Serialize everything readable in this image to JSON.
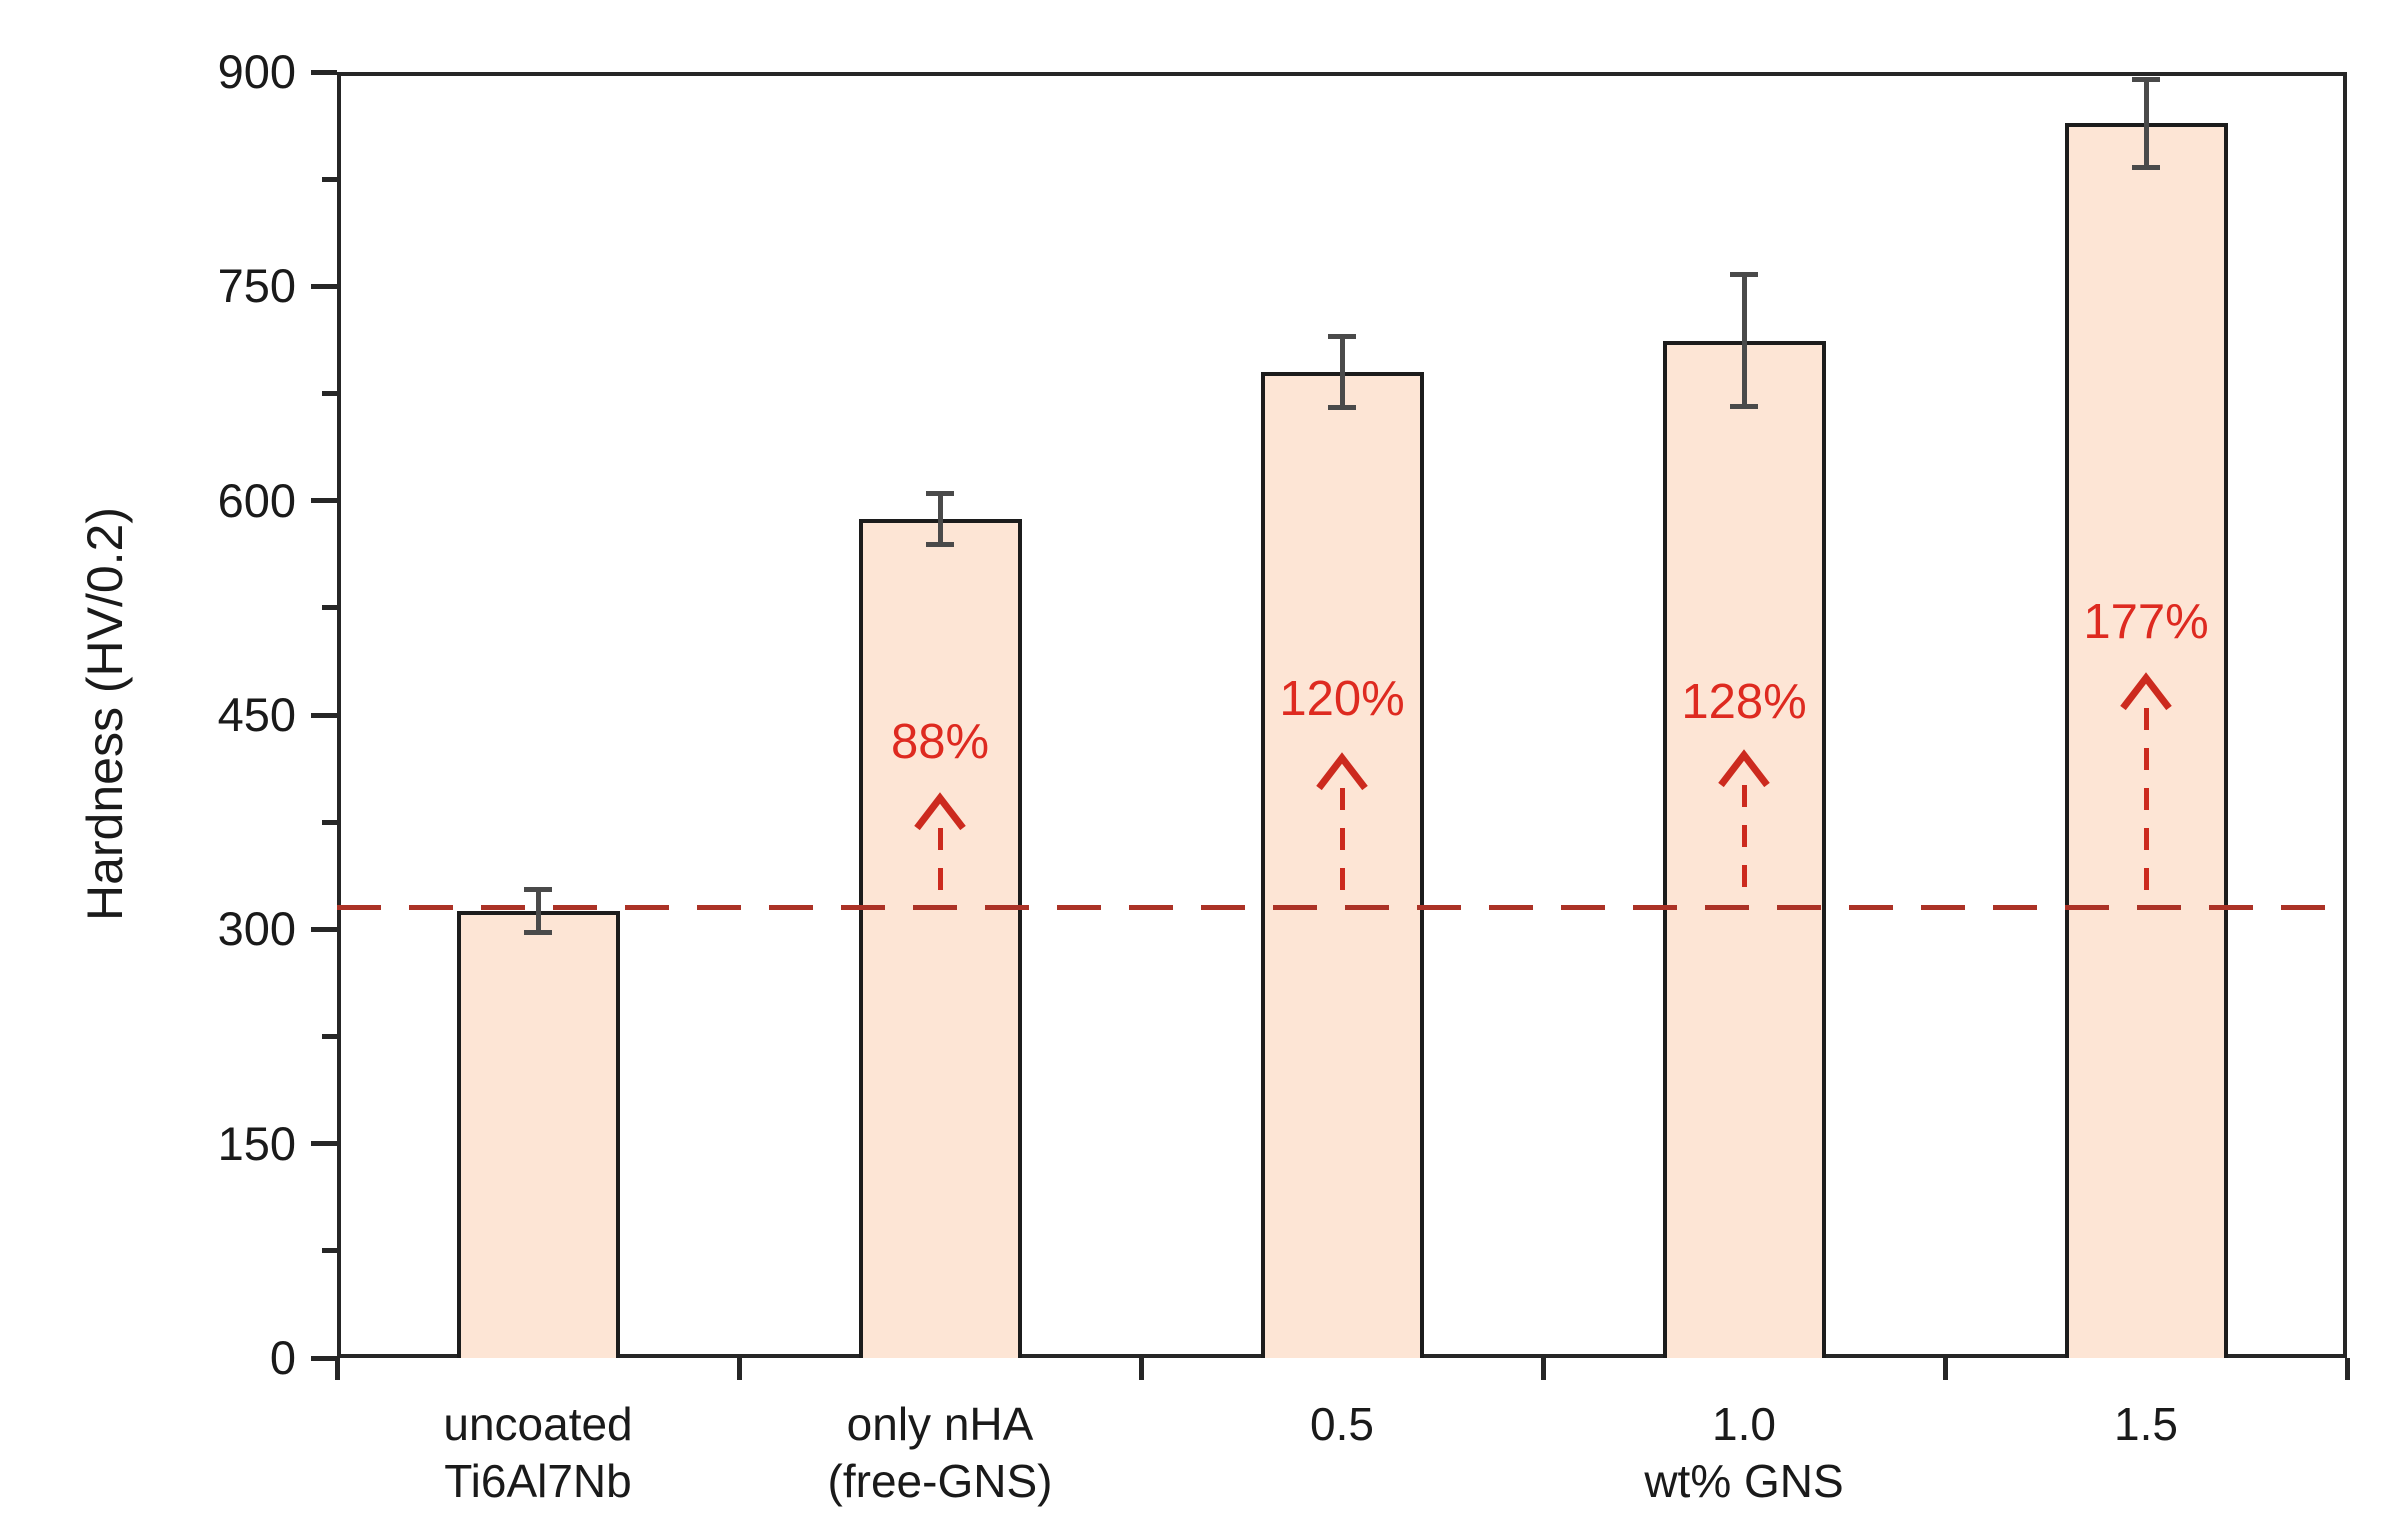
{
  "chart_data": {
    "type": "bar",
    "title": "",
    "ylabel": "Hardness (HV/0.2)",
    "xlabel": "wt% GNS",
    "ylim": [
      0,
      900
    ],
    "ytick_major_step": 150,
    "ytick_minor_step": 75,
    "ytick_labels": [
      "0",
      "150",
      "300",
      "450",
      "600",
      "750",
      "900"
    ],
    "grid": "off",
    "legend": "none",
    "categories": [
      {
        "lines": [
          "uncoated",
          "Ti6Al7Nb"
        ]
      },
      {
        "lines": [
          "only nHA",
          "(free-GNS)"
        ]
      },
      {
        "lines": [
          "0.5"
        ]
      },
      {
        "lines": [
          "1.0",
          "wt% GNS"
        ]
      },
      {
        "lines": [
          "1.5"
        ]
      }
    ],
    "values": [
      313,
      587,
      690,
      712,
      864
    ],
    "errors": [
      15,
      18,
      25,
      46,
      31
    ],
    "baseline": {
      "value": 315,
      "style": "dashed",
      "color": "#ab3226"
    },
    "annotations": [
      {
        "bar_index": 1,
        "label": "88%",
        "arrow_tip_value": 399,
        "label_center_value": 431
      },
      {
        "bar_index": 2,
        "label": "120%",
        "arrow_tip_value": 427,
        "label_center_value": 461
      },
      {
        "bar_index": 3,
        "label": "128%",
        "arrow_tip_value": 429,
        "label_center_value": 459
      },
      {
        "bar_index": 4,
        "label": "177%",
        "arrow_tip_value": 483,
        "label_center_value": 515
      }
    ],
    "colors": {
      "bar_fill": "#fde5d5",
      "bar_border": "#1c1c1c",
      "error_bar": "#4a4a4a",
      "baseline_red": "#ab3226",
      "arrow_red": "#cc2a1e",
      "annotation_text_red": "#de2a20",
      "axis_black": "#262626"
    }
  }
}
